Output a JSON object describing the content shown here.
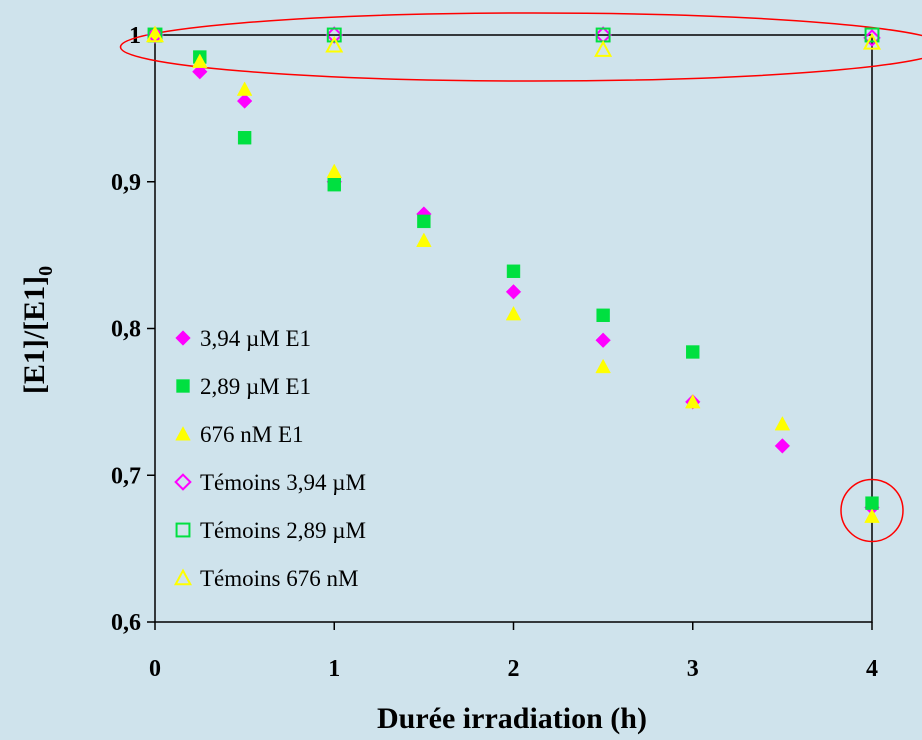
{
  "chart_data": {
    "type": "scatter",
    "xlabel": "Durée irradiation (h)",
    "ylabel_main": "[E1]/[E1]",
    "ylabel_sub": "0",
    "xlim": [
      0,
      4
    ],
    "ylim": [
      0.6,
      1.0
    ],
    "x_ticks": [
      "0",
      "1",
      "2",
      "3",
      "4"
    ],
    "y_ticks": [
      "0,6",
      "0,7",
      "0,8",
      "0,9",
      "1"
    ],
    "grid": false,
    "legend_position": "lower-left inside plot",
    "series": [
      {
        "name": "3,94 µM E1",
        "marker": "diamond-filled",
        "color": "#ff00ff",
        "points": [
          [
            0,
            1.0
          ],
          [
            0.25,
            0.975
          ],
          [
            0.5,
            0.955
          ],
          [
            1,
            0.9
          ],
          [
            1.5,
            0.878
          ],
          [
            2,
            0.825
          ],
          [
            2.5,
            0.792
          ],
          [
            3,
            0.75
          ],
          [
            3.5,
            0.72
          ],
          [
            4,
            0.678
          ]
        ]
      },
      {
        "name": "2,89 µM E1",
        "marker": "square-filled",
        "color": "#00e040",
        "points": [
          [
            0,
            1.0
          ],
          [
            0.25,
            0.985
          ],
          [
            0.5,
            0.93
          ],
          [
            1,
            0.898
          ],
          [
            1.5,
            0.873
          ],
          [
            2,
            0.839
          ],
          [
            2.5,
            0.809
          ],
          [
            3,
            0.784
          ],
          [
            4,
            0.681
          ]
        ]
      },
      {
        "name": "676 nM E1",
        "marker": "triangle-filled",
        "color": "#ffff00",
        "points": [
          [
            0,
            1.0
          ],
          [
            0.25,
            0.982
          ],
          [
            0.5,
            0.963
          ],
          [
            1,
            0.907
          ],
          [
            1.5,
            0.86
          ],
          [
            2,
            0.81
          ],
          [
            2.5,
            0.774
          ],
          [
            3,
            0.75
          ],
          [
            3.5,
            0.735
          ],
          [
            4,
            0.672
          ]
        ]
      },
      {
        "name": "Témoins 3,94 µM",
        "marker": "diamond-open",
        "color": "#ff00ff",
        "points": [
          [
            0,
            1.0
          ],
          [
            1,
            1.0
          ],
          [
            2.5,
            1.0
          ],
          [
            4,
            0.998
          ]
        ]
      },
      {
        "name": "Témoins 2,89 µM",
        "marker": "square-open",
        "color": "#00e040",
        "points": [
          [
            0,
            1.0
          ],
          [
            1,
            1.0
          ],
          [
            2.5,
            1.0
          ],
          [
            4,
            1.0
          ]
        ]
      },
      {
        "name": "Témoins 676 nM",
        "marker": "triangle-open",
        "color": "#ffff00",
        "points": [
          [
            0,
            1.0
          ],
          [
            1,
            0.993
          ],
          [
            2.5,
            0.99
          ],
          [
            4,
            0.995
          ]
        ]
      }
    ],
    "annotations": [
      {
        "type": "ellipse",
        "around": "y = 1 (témoins)",
        "color": "#ff0000"
      },
      {
        "type": "circle",
        "around": "x = 4, y ≈ 0.68",
        "color": "#ff0000"
      }
    ]
  }
}
